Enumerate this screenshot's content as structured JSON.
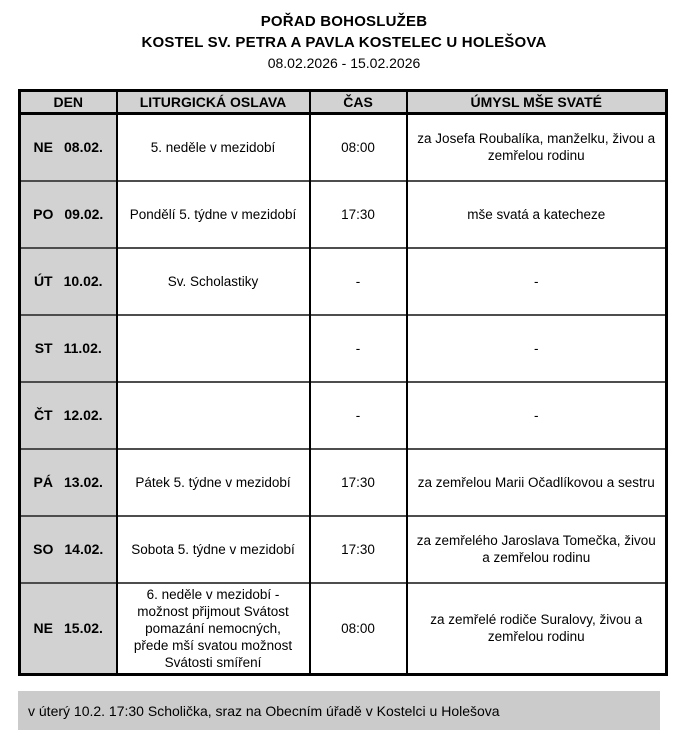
{
  "header": {
    "title": "POŘAD BOHOSLUŽEB",
    "subtitle": "KOSTEL SV. PETRA A PAVLA KOSTELEC U HOLEŠOVA",
    "date_range": "08.02.2026 - 15.02.2026"
  },
  "table": {
    "columns": [
      "DEN",
      "LITURGICKÁ OSLAVA",
      "ČAS",
      "ÚMYSL MŠE SVATÉ"
    ],
    "rows": [
      {
        "day": "NE",
        "date": "08.02.",
        "celebration": "5. neděle v mezidobí",
        "time": "08:00",
        "intention": "za Josefa Roubalíka, manželku, živou a zemřelou rodinu"
      },
      {
        "day": "PO",
        "date": "09.02.",
        "celebration": "Pondělí 5. týdne v mezidobí",
        "time": "17:30",
        "intention": "mše svatá a katecheze"
      },
      {
        "day": "ÚT",
        "date": "10.02.",
        "celebration": "Sv. Scholastiky",
        "time": "-",
        "intention": "-"
      },
      {
        "day": "ST",
        "date": "11.02.",
        "celebration": "",
        "time": "-",
        "intention": "-"
      },
      {
        "day": "ČT",
        "date": "12.02.",
        "celebration": "",
        "time": "-",
        "intention": "-"
      },
      {
        "day": "PÁ",
        "date": "13.02.",
        "celebration": "Pátek 5. týdne v mezidobí",
        "time": "17:30",
        "intention": "za zemřelou Marii Očadlíkovou a sestru"
      },
      {
        "day": "SO",
        "date": "14.02.",
        "celebration": "Sobota 5. týdne v mezidobí",
        "time": "17:30",
        "intention": "za zemřelého Jaroslava Tomečka, živou a zemřelou rodinu"
      },
      {
        "day": "NE",
        "date": "15.02.",
        "celebration": "6. neděle v mezidobí - možnost přijmout Svátost pomazání nemocných, přede mší svatou možnost Svátosti smíření",
        "time": "08:00",
        "intention": "za zemřelé rodiče Suralovy, živou a zemřelou rodinu"
      }
    ]
  },
  "footer": {
    "note": "v úterý 10.2. 17:30 Scholička, sraz na Obecním úřadě v Kostelci u Holešova"
  },
  "colors": {
    "cell_gray": "#d2d2d2",
    "footer_gray": "#cbcbcb",
    "border_black": "#000000",
    "row_separator": "#4d4d4d"
  }
}
